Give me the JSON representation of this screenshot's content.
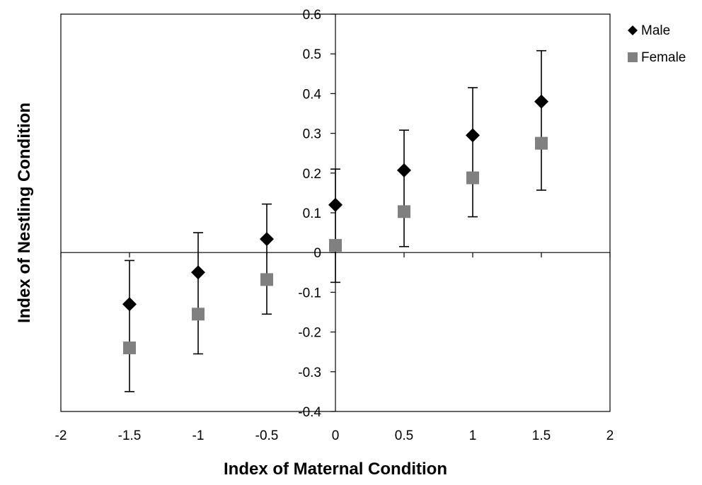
{
  "chart_data": {
    "type": "scatter",
    "xlabel": "Index of Maternal Condition",
    "ylabel": "Index of Nestling Condition",
    "xlim": [
      -2,
      2
    ],
    "ylim": [
      -0.4,
      0.6
    ],
    "x_ticks": [
      "-2",
      "-1.5",
      "-1",
      "-0.5",
      "0",
      "0.5",
      "1",
      "1.5",
      "2"
    ],
    "y_ticks": [
      "0.6",
      "0.5",
      "0.4",
      "0.3",
      "0.2",
      "0.1",
      "0",
      "-0.1",
      "-0.2",
      "-0.3",
      "-0.4"
    ],
    "grid": false,
    "legend_position": "top-right",
    "series": [
      {
        "name": "Male",
        "marker": "diamond",
        "color": "#000000",
        "x": [
          -1.5,
          -1,
          -0.5,
          0,
          0.5,
          1,
          1.5
        ],
        "y": [
          -0.13,
          -0.05,
          0.034,
          0.12,
          0.207,
          0.295,
          0.38
        ]
      },
      {
        "name": "Female",
        "marker": "square",
        "color": "#808080",
        "x": [
          -1.5,
          -1,
          -0.5,
          0,
          0.5,
          1,
          1.5
        ],
        "y": [
          -0.24,
          -0.155,
          -0.068,
          0.018,
          0.103,
          0.188,
          0.275
        ]
      }
    ],
    "error_bars": [
      {
        "x": -1.5,
        "low": -0.35,
        "high": -0.02
      },
      {
        "x": -1,
        "low": -0.255,
        "high": 0.05
      },
      {
        "x": -0.5,
        "low": -0.155,
        "high": 0.122
      },
      {
        "x": 0,
        "low": -0.075,
        "high": 0.21
      },
      {
        "x": 0.5,
        "low": 0.015,
        "high": 0.308
      },
      {
        "x": 1,
        "low": 0.09,
        "high": 0.415
      },
      {
        "x": 1.5,
        "low": 0.157,
        "high": 0.508
      }
    ]
  }
}
